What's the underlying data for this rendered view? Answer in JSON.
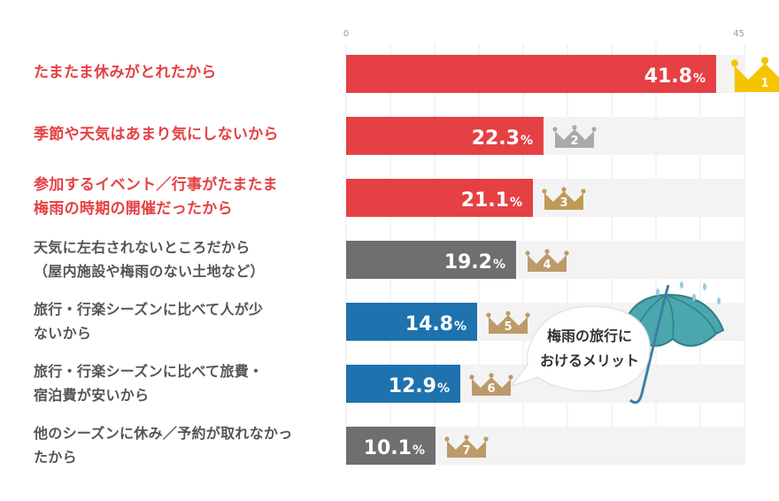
{
  "chart_data": {
    "type": "bar",
    "orientation": "horizontal",
    "xlim": [
      0,
      45
    ],
    "ticks": [
      "0",
      "45"
    ],
    "grid": true,
    "unit": "%",
    "categories": [
      [
        "たまたま休みがとれたから"
      ],
      [
        "季節や天気はあまり気にしないから"
      ],
      [
        "参加するイベント／行事がたまたま",
        "梅雨の時期の開催だったから"
      ],
      [
        "天気に左右されないところだから",
        "（屋内施設や梅雨のない土地など）"
      ],
      [
        "旅行・行楽シーズンに比べて人が少",
        "ないから"
      ],
      [
        "旅行・行楽シーズンに比べて旅費・",
        "宿泊費が安いから"
      ],
      [
        "他のシーズンに休み／予約が取れなかっ",
        "たから"
      ]
    ],
    "values": [
      41.8,
      22.3,
      21.1,
      19.2,
      14.8,
      12.9,
      10.1
    ],
    "value_labels": [
      "41.8",
      "22.3",
      "21.1",
      "19.2",
      "14.8",
      "12.9",
      "10.1"
    ],
    "ranks": [
      "1",
      "2",
      "3",
      "4",
      "5",
      "6",
      "7"
    ],
    "bar_colors": [
      "#e54044",
      "#e54044",
      "#e54044",
      "#6f6f6f",
      "#1e72ae",
      "#1e72ae",
      "#6f6f6f"
    ],
    "label_colors": [
      "#e54044",
      "#e54044",
      "#e54044",
      "#555555",
      "#555555",
      "#555555",
      "#555555"
    ],
    "crown_colors": [
      "#f5c400",
      "#a9a9a9",
      "#c19a55",
      "#bc9a6a",
      "#bc9a6a",
      "#bc9a6a",
      "#bc9a6a"
    ],
    "track_color": "#f3f3f3",
    "callout": [
      "梅雨の旅行に",
      "おけるメリット"
    ],
    "callout_icon": "umbrella-icon"
  }
}
